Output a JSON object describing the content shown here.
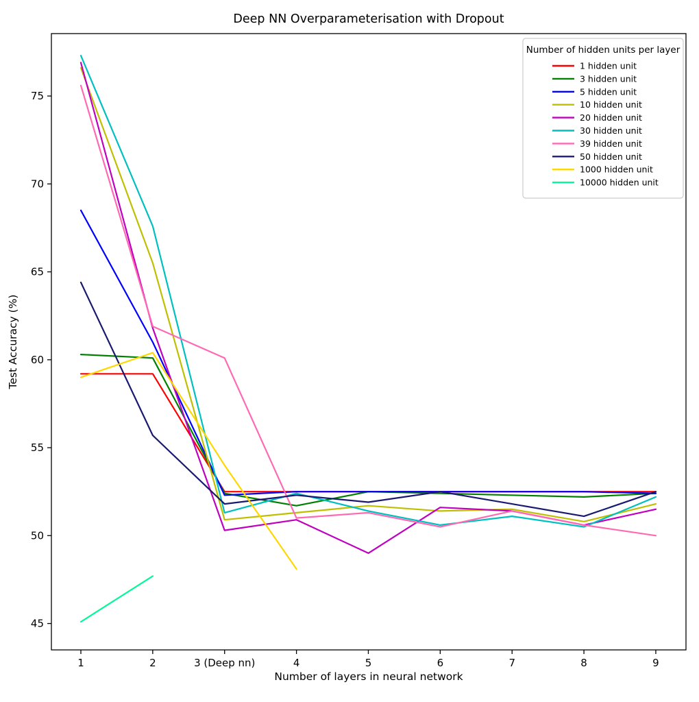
{
  "chart_data": {
    "type": "line",
    "title": "Deep NN Overparameterisation with Dropout",
    "xlabel": "Number of layers in neural network",
    "ylabel": "Test Accuracy (%)",
    "legend_title": "Number of hidden units per layer",
    "legend_position": "upper right",
    "grid": false,
    "xlim": [
      0.59,
      9.42
    ],
    "ylim": [
      43.5,
      78.55
    ],
    "xticks": [
      1,
      2,
      3,
      4,
      5,
      6,
      7,
      8,
      9
    ],
    "xtick_labels": [
      "1",
      "2",
      "3 (Deep nn)",
      "4",
      "5",
      "6",
      "7",
      "8",
      "9"
    ],
    "yticks": [
      45,
      50,
      55,
      60,
      65,
      70,
      75
    ],
    "ytick_labels": [
      "45",
      "50",
      "55",
      "60",
      "65",
      "70",
      "75"
    ],
    "axis_color": "#000000",
    "background_color": "#ffffff",
    "legend_border_color": "#cccccc",
    "series": [
      {
        "name": "1 hidden unit",
        "color": "#ff0000",
        "x": [
          1,
          2,
          3,
          4,
          5,
          6,
          7,
          8,
          9
        ],
        "values": [
          59.2,
          59.2,
          52.5,
          52.5,
          52.5,
          52.5,
          52.5,
          52.5,
          52.5
        ]
      },
      {
        "name": "3 hidden unit",
        "color": "#008000",
        "x": [
          1,
          2,
          3,
          4,
          5,
          6,
          7,
          8,
          9
        ],
        "values": [
          60.3,
          60.1,
          52.4,
          51.7,
          52.5,
          52.4,
          52.3,
          52.2,
          52.4
        ]
      },
      {
        "name": "5 hidden unit",
        "color": "#0000ff",
        "x": [
          1,
          2,
          3,
          4,
          5,
          6,
          7,
          8,
          9
        ],
        "values": [
          68.5,
          61.0,
          52.3,
          52.5,
          52.5,
          52.5,
          52.5,
          52.5,
          52.4
        ]
      },
      {
        "name": "10 hidden unit",
        "color": "#bfbf00",
        "x": [
          1,
          2,
          3,
          4,
          5,
          6,
          7,
          8,
          9
        ],
        "values": [
          76.6,
          65.5,
          50.9,
          51.3,
          51.7,
          51.4,
          51.5,
          50.8,
          51.8
        ]
      },
      {
        "name": "20 hidden unit",
        "color": "#bf00bf",
        "x": [
          1,
          2,
          3,
          4,
          5,
          6,
          7,
          8,
          9
        ],
        "values": [
          76.9,
          61.8,
          50.3,
          50.9,
          49.0,
          51.6,
          51.4,
          50.6,
          51.5
        ]
      },
      {
        "name": "30 hidden unit",
        "color": "#00bfbf",
        "x": [
          1,
          2,
          3,
          4,
          5,
          6,
          7,
          8,
          9
        ],
        "values": [
          77.3,
          67.6,
          51.3,
          52.4,
          51.4,
          50.6,
          51.1,
          50.5,
          52.2
        ]
      },
      {
        "name": "39 hidden unit",
        "color": "#ff69b4",
        "x": [
          1,
          2,
          3,
          4,
          5,
          6,
          7,
          8,
          9
        ],
        "values": [
          75.6,
          61.9,
          60.1,
          51.0,
          51.3,
          50.5,
          51.4,
          50.6,
          50.0
        ]
      },
      {
        "name": "50 hidden unit",
        "color": "#191970",
        "x": [
          1,
          2,
          3,
          4,
          5,
          6,
          7,
          8,
          9
        ],
        "values": [
          64.4,
          55.7,
          51.8,
          52.3,
          51.9,
          52.5,
          51.8,
          51.1,
          52.5
        ]
      },
      {
        "name": "1000 hidden unit",
        "color": "#ffd700",
        "x": [
          1,
          2,
          3,
          4
        ],
        "values": [
          59.0,
          60.4,
          54.0,
          48.1
        ]
      },
      {
        "name": "10000 hidden unit",
        "color": "#00fa9a",
        "x": [
          1,
          2
        ],
        "values": [
          45.1,
          47.7
        ]
      }
    ]
  }
}
